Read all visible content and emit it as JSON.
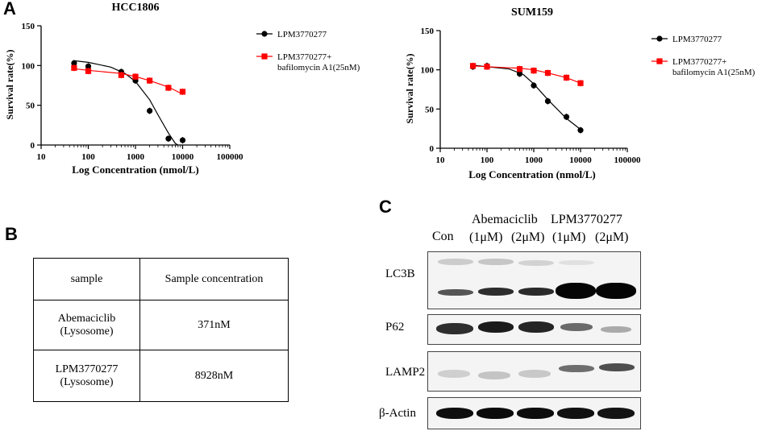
{
  "panels": {
    "A": "A",
    "B": "B",
    "C": "C"
  },
  "chart_data": [
    {
      "type": "line",
      "title": "HCC1806",
      "xlabel": "Log Concentration (nmol/L)",
      "ylabel": "Survival rate(%)",
      "xscale": "log",
      "xlim": [
        10,
        100000
      ],
      "ylim": [
        0,
        150
      ],
      "xticks": [
        "10",
        "100",
        "1000",
        "10000",
        "100000"
      ],
      "yticks": [
        "0",
        "50",
        "100",
        "150"
      ],
      "legend_position": "right",
      "series": [
        {
          "name": "LPM3770277",
          "color": "#000000",
          "marker": "circle",
          "x": [
            50,
            100,
            500,
            1000,
            2000,
            5000,
            10000
          ],
          "y": [
            103,
            99,
            92,
            81,
            43,
            8,
            6
          ],
          "fit": [
            [
              50,
              106
            ],
            [
              100,
              104
            ],
            [
              300,
              98
            ],
            [
              600,
              90
            ],
            [
              1000,
              80
            ],
            [
              2000,
              57
            ],
            [
              3000,
              38
            ],
            [
              5000,
              15
            ],
            [
              7000,
              2
            ],
            [
              8000,
              0
            ]
          ]
        },
        {
          "name": "LPM3770277+\nbafilomycin A1(25nM)",
          "color": "#ff0000",
          "marker": "square",
          "x": [
            50,
            100,
            500,
            1000,
            2000,
            5000,
            10000
          ],
          "y": [
            97,
            93,
            88,
            86,
            81,
            72,
            67
          ],
          "fit": [
            [
              50,
              96
            ],
            [
              100,
              94
            ],
            [
              500,
              90
            ],
            [
              1000,
              86
            ],
            [
              2000,
              81
            ],
            [
              5000,
              73
            ],
            [
              10000,
              64
            ]
          ]
        }
      ]
    },
    {
      "type": "line",
      "title": "SUM159",
      "xlabel": "Log Concentration (nmol/L)",
      "ylabel": "Survival rate(%)",
      "xscale": "log",
      "xlim": [
        10,
        100000
      ],
      "ylim": [
        0,
        150
      ],
      "xticks": [
        "10",
        "100",
        "1000",
        "10000",
        "100000"
      ],
      "yticks": [
        "0",
        "50",
        "100",
        "150"
      ],
      "legend_position": "right",
      "series": [
        {
          "name": "LPM3770277",
          "color": "#000000",
          "marker": "circle",
          "x": [
            50,
            100,
            500,
            1000,
            2000,
            5000,
            10000
          ],
          "y": [
            104,
            105,
            95,
            80,
            60,
            40,
            23
          ],
          "fit": [
            [
              50,
              106
            ],
            [
              100,
              104
            ],
            [
              300,
              101
            ],
            [
              600,
              94
            ],
            [
              1000,
              82
            ],
            [
              2000,
              62
            ],
            [
              5000,
              38
            ],
            [
              10000,
              24
            ]
          ]
        },
        {
          "name": "LPM3770277+\nbafilomycin A1(25nM)",
          "color": "#ff0000",
          "marker": "square",
          "x": [
            50,
            100,
            500,
            1000,
            2000,
            5000,
            10000
          ],
          "y": [
            105,
            104,
            101,
            99,
            96,
            90,
            83
          ],
          "fit": [
            [
              50,
              105
            ],
            [
              100,
              104
            ],
            [
              500,
              102
            ],
            [
              1000,
              100
            ],
            [
              2000,
              96
            ],
            [
              5000,
              90
            ],
            [
              10000,
              83
            ]
          ]
        }
      ]
    }
  ],
  "table": {
    "headers": [
      "sample",
      "Sample concentration"
    ],
    "rows": [
      {
        "sample_line1": "Abemaciclib",
        "sample_line2": "(Lysosome)",
        "value": "371nM"
      },
      {
        "sample_line1": "LPM3770277",
        "sample_line2": "(Lysosome)",
        "value": "8928nM"
      }
    ]
  },
  "western_blot": {
    "lanes": {
      "con": "Con",
      "abemaciclib": "Abemaciclib",
      "lpm": "LPM3770277",
      "dose1": "(1μM)",
      "dose2": "(2μM)",
      "dose3": "(1μM)",
      "dose4": "(2μM)"
    },
    "rows": [
      "LC3B",
      "P62",
      "LAMP2",
      "β-Actin"
    ]
  }
}
